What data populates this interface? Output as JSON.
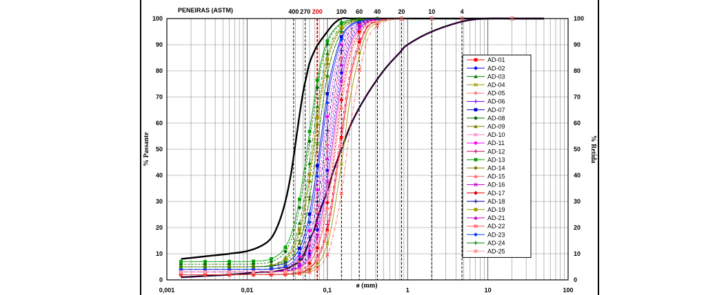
{
  "chart_data": {
    "type": "line",
    "header_label": "PENEIRAS (ASTM)",
    "xlabel": "ø (mm)",
    "ylabel_left": "% Passante",
    "ylabel_right": "% Retida",
    "xscale": "log",
    "xlim": [
      0.001,
      100
    ],
    "ylim": [
      0,
      100
    ],
    "x_tick_labels": [
      "0,001",
      "0,01",
      "0,1",
      "1",
      "10",
      "100"
    ],
    "y_left_ticks": [
      0,
      10,
      20,
      30,
      40,
      50,
      60,
      70,
      80,
      90,
      100
    ],
    "y_right_ticks": [
      0,
      10,
      20,
      30,
      40,
      50,
      60,
      70,
      80,
      90,
      100
    ],
    "grid": true,
    "legend_position": "right",
    "sieves": [
      {
        "label": "400",
        "x": 0.038,
        "color": "#000000"
      },
      {
        "label": "270",
        "x": 0.053,
        "color": "#000000"
      },
      {
        "label": "200",
        "x": 0.075,
        "color": "#e00000"
      },
      {
        "label": "100",
        "x": 0.15,
        "color": "#000000"
      },
      {
        "label": "60",
        "x": 0.25,
        "color": "#000000"
      },
      {
        "label": "40",
        "x": 0.42,
        "color": "#000000"
      },
      {
        "label": "20",
        "x": 0.84,
        "color": "#000000"
      },
      {
        "label": "10",
        "x": 2.0,
        "color": "#000000"
      },
      {
        "label": "4",
        "x": 4.76,
        "color": "#000000"
      }
    ],
    "envelope": {
      "x": [
        0.0015,
        0.003,
        0.006,
        0.01,
        0.015,
        0.02,
        0.025,
        0.03,
        0.035,
        0.04,
        0.045,
        0.05,
        0.055,
        0.06,
        0.07,
        0.08,
        0.1,
        0.12,
        0.15,
        0.2,
        0.3,
        0.5,
        0.8,
        1,
        2,
        5,
        10,
        20,
        50
      ],
      "upper": [
        8,
        9,
        10,
        11,
        13,
        16,
        22,
        30,
        40,
        52,
        63,
        72,
        78,
        83,
        88,
        91,
        95,
        98,
        100,
        100,
        100,
        100,
        100,
        100,
        100,
        100,
        100,
        100,
        100
      ],
      "lower": [
        1,
        1.5,
        2,
        2.5,
        3,
        3,
        3.5,
        4,
        5,
        6,
        7,
        9,
        12,
        15,
        20,
        26,
        34,
        42,
        50,
        60,
        70,
        80,
        87,
        90,
        95,
        99,
        100,
        100,
        100
      ]
    },
    "series": [
      {
        "name": "AD-01",
        "color": "#ff0000",
        "marker": "square",
        "d50": 0.145,
        "fmin": 2
      },
      {
        "name": "AD-02",
        "color": "#0000ff",
        "marker": "diamond",
        "d50": 0.11,
        "fmin": 3
      },
      {
        "name": "AD-03",
        "color": "#008000",
        "marker": "triangle",
        "d50": 0.065,
        "fmin": 5
      },
      {
        "name": "AD-04",
        "color": "#999900",
        "marker": "x",
        "d50": 0.16,
        "fmin": 2
      },
      {
        "name": "AD-05",
        "color": "#ff8080",
        "marker": "diamond",
        "d50": 0.13,
        "fmin": 3
      },
      {
        "name": "AD-06",
        "color": "#8000ff",
        "marker": "plus",
        "d50": 0.1,
        "fmin": 3
      },
      {
        "name": "AD-07",
        "color": "#0000cc",
        "marker": "square",
        "d50": 0.082,
        "fmin": 5
      },
      {
        "name": "AD-08",
        "color": "#006400",
        "marker": "diamond",
        "d50": 0.06,
        "fmin": 6
      },
      {
        "name": "AD-09",
        "color": "#808000",
        "marker": "triangle",
        "d50": 0.075,
        "fmin": 4
      },
      {
        "name": "AD-10",
        "color": "#ff80c0",
        "marker": "x",
        "d50": 0.12,
        "fmin": 3
      },
      {
        "name": "AD-11",
        "color": "#ff00ff",
        "marker": "circle",
        "d50": 0.09,
        "fmin": 4
      },
      {
        "name": "AD-12",
        "color": "#cc0066",
        "marker": "plus",
        "d50": 0.14,
        "fmin": 2
      },
      {
        "name": "AD-13",
        "color": "#00a000",
        "marker": "square",
        "d50": 0.058,
        "fmin": 7
      },
      {
        "name": "AD-14",
        "color": "#808000",
        "marker": "diamond",
        "d50": 0.07,
        "fmin": 5
      },
      {
        "name": "AD-15",
        "color": "#ff6666",
        "marker": "triangle",
        "d50": 0.1,
        "fmin": 4
      },
      {
        "name": "AD-16",
        "color": "#cc00cc",
        "marker": "x",
        "d50": 0.115,
        "fmin": 3
      },
      {
        "name": "AD-17",
        "color": "#e00000",
        "marker": "diamond",
        "d50": 0.125,
        "fmin": 2
      },
      {
        "name": "AD-18",
        "color": "#000099",
        "marker": "plus",
        "d50": 0.095,
        "fmin": 4
      },
      {
        "name": "AD-19",
        "color": "#999900",
        "marker": "square",
        "d50": 0.068,
        "fmin": 5
      },
      {
        "name": "AD-21",
        "color": "#cc00cc",
        "marker": "triangle",
        "d50": 0.105,
        "fmin": 3
      },
      {
        "name": "AD-22",
        "color": "#ff5050",
        "marker": "x",
        "d50": 0.18,
        "fmin": 2
      },
      {
        "name": "AD-23",
        "color": "#0040ff",
        "marker": "diamond",
        "d50": 0.085,
        "fmin": 4
      },
      {
        "name": "AD-24",
        "color": "#008000",
        "marker": "plus",
        "d50": 0.075,
        "fmin": 5
      },
      {
        "name": "AD-25",
        "color": "#ff9999",
        "marker": "square",
        "d50": 0.15,
        "fmin": 3
      }
    ]
  }
}
